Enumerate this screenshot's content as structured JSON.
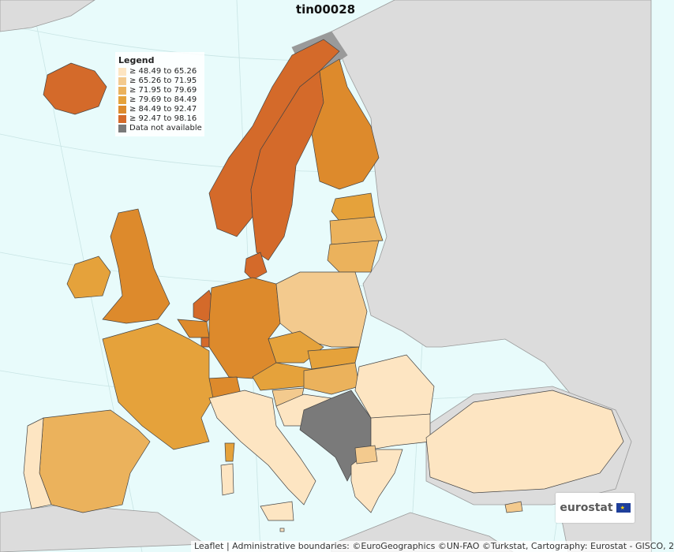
{
  "title": "tin00028",
  "legend": {
    "heading": "Legend",
    "classes": [
      {
        "label": "≥ 48.49 to 65.26",
        "color": "#fde5c2"
      },
      {
        "label": "≥ 65.26 to 71.95",
        "color": "#f3ca8e"
      },
      {
        "label": "≥ 71.95 to 79.69",
        "color": "#ebb25c"
      },
      {
        "label": "≥ 79.69 to 84.49",
        "color": "#e5a23b"
      },
      {
        "label": "≥ 84.49 to 92.47",
        "color": "#dd8a2c"
      },
      {
        "label": "≥ 92.47 to 98.16",
        "color": "#d46a2a"
      },
      {
        "label": "Data not available",
        "color": "#7a7a7a"
      }
    ]
  },
  "logo": {
    "text": "eurostat"
  },
  "attribution": "Leaflet | Administrative boundaries: ©EuroGeographics ©UN-FAO ©Turkstat, Cartography: Eurostat - GISCO, 2",
  "colors": {
    "sea": "#e8fbfb",
    "non_eu_land": "#dcdcdc",
    "border": "#444444"
  }
}
